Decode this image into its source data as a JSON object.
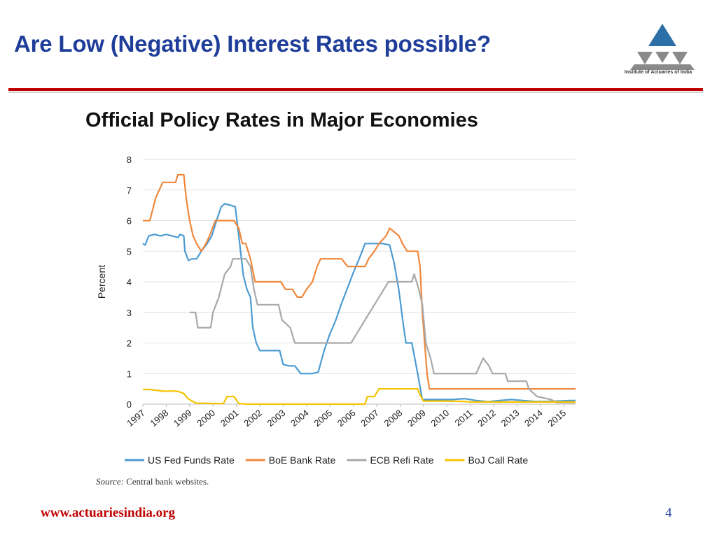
{
  "slide": {
    "title": "Are Low (Negative) Interest Rates possible?",
    "logo_text": "Institute of Actuaries of India",
    "subtitle": "Official Policy Rates in Major Economies",
    "source_label": "Source:",
    "source_text": "Central bank websites.",
    "footer_url": "www.actuariesindia.org",
    "page_number": "4"
  },
  "colors": {
    "title": "#1f3e9a",
    "accent_red": "#c00000",
    "logo_blue": "#2c6fa6",
    "logo_grey": "#8a8a8a"
  },
  "chart_data": {
    "type": "line",
    "title": "Official Policy Rates in Major Economies",
    "xlabel": "",
    "ylabel": "Percent",
    "xlim": [
      1997,
      2015.5
    ],
    "ylim": [
      0,
      8
    ],
    "yticks": [
      0,
      1,
      2,
      3,
      4,
      5,
      6,
      7,
      8
    ],
    "xticks": [
      "1997",
      "1998",
      "1999",
      "2000",
      "2001",
      "2002",
      "2003",
      "2004",
      "2005",
      "2006",
      "2007",
      "2008",
      "2009",
      "2010",
      "2011",
      "2012",
      "2013",
      "2014",
      "2015"
    ],
    "grid": "horizontal",
    "legend_position": "bottom",
    "series": [
      {
        "name": "US Fed Funds Rate",
        "color": "#4c9bd2",
        "points": [
          [
            1997.0,
            5.25
          ],
          [
            1997.1,
            5.2
          ],
          [
            1997.25,
            5.5
          ],
          [
            1997.5,
            5.55
          ],
          [
            1997.75,
            5.5
          ],
          [
            1998.0,
            5.55
          ],
          [
            1998.25,
            5.5
          ],
          [
            1998.5,
            5.45
          ],
          [
            1998.6,
            5.55
          ],
          [
            1998.75,
            5.5
          ],
          [
            1998.8,
            5.0
          ],
          [
            1998.95,
            4.7
          ],
          [
            1999.1,
            4.75
          ],
          [
            1999.3,
            4.75
          ],
          [
            1999.5,
            5.0
          ],
          [
            1999.75,
            5.25
          ],
          [
            1999.95,
            5.5
          ],
          [
            2000.15,
            6.0
          ],
          [
            2000.35,
            6.45
          ],
          [
            2000.5,
            6.55
          ],
          [
            2000.75,
            6.5
          ],
          [
            2000.95,
            6.45
          ],
          [
            2001.1,
            5.5
          ],
          [
            2001.3,
            4.2
          ],
          [
            2001.45,
            3.75
          ],
          [
            2001.6,
            3.5
          ],
          [
            2001.7,
            2.5
          ],
          [
            2001.85,
            2.0
          ],
          [
            2002.0,
            1.75
          ],
          [
            2002.25,
            1.75
          ],
          [
            2002.5,
            1.75
          ],
          [
            2002.85,
            1.75
          ],
          [
            2003.0,
            1.3
          ],
          [
            2003.25,
            1.25
          ],
          [
            2003.5,
            1.25
          ],
          [
            2003.75,
            1.0
          ],
          [
            2004.0,
            1.0
          ],
          [
            2004.25,
            1.0
          ],
          [
            2004.5,
            1.05
          ],
          [
            2004.75,
            1.75
          ],
          [
            2005.0,
            2.3
          ],
          [
            2005.25,
            2.75
          ],
          [
            2005.5,
            3.3
          ],
          [
            2005.75,
            3.8
          ],
          [
            2006.0,
            4.3
          ],
          [
            2006.25,
            4.75
          ],
          [
            2006.5,
            5.25
          ],
          [
            2006.75,
            5.25
          ],
          [
            2007.0,
            5.25
          ],
          [
            2007.25,
            5.25
          ],
          [
            2007.55,
            5.2
          ],
          [
            2007.75,
            4.6
          ],
          [
            2007.95,
            3.7
          ],
          [
            2008.1,
            2.8
          ],
          [
            2008.25,
            2.0
          ],
          [
            2008.5,
            2.0
          ],
          [
            2008.75,
            1.0
          ],
          [
            2008.95,
            0.15
          ],
          [
            2009.25,
            0.15
          ],
          [
            2009.75,
            0.15
          ],
          [
            2010.25,
            0.15
          ],
          [
            2010.75,
            0.18
          ],
          [
            2011.25,
            0.12
          ],
          [
            2011.75,
            0.08
          ],
          [
            2012.25,
            0.12
          ],
          [
            2012.75,
            0.15
          ],
          [
            2013.25,
            0.12
          ],
          [
            2013.75,
            0.09
          ],
          [
            2014.25,
            0.09
          ],
          [
            2014.75,
            0.1
          ],
          [
            2015.25,
            0.12
          ],
          [
            2015.5,
            0.12
          ]
        ]
      },
      {
        "name": "BoE Bank Rate",
        "color": "#f0883c",
        "points": [
          [
            1997.0,
            6.0
          ],
          [
            1997.3,
            6.0
          ],
          [
            1997.55,
            6.75
          ],
          [
            1997.7,
            7.0
          ],
          [
            1997.85,
            7.25
          ],
          [
            1998.4,
            7.25
          ],
          [
            1998.5,
            7.5
          ],
          [
            1998.75,
            7.5
          ],
          [
            1998.85,
            6.75
          ],
          [
            1999.0,
            6.0
          ],
          [
            1999.15,
            5.5
          ],
          [
            1999.3,
            5.25
          ],
          [
            1999.5,
            5.0
          ],
          [
            1999.7,
            5.25
          ],
          [
            1999.85,
            5.5
          ],
          [
            2000.1,
            6.0
          ],
          [
            2000.9,
            6.0
          ],
          [
            2001.1,
            5.75
          ],
          [
            2001.25,
            5.25
          ],
          [
            2001.4,
            5.25
          ],
          [
            2001.6,
            4.75
          ],
          [
            2001.8,
            4.0
          ],
          [
            2002.0,
            4.0
          ],
          [
            2002.9,
            4.0
          ],
          [
            2003.1,
            3.75
          ],
          [
            2003.4,
            3.75
          ],
          [
            2003.6,
            3.5
          ],
          [
            2003.8,
            3.5
          ],
          [
            2004.0,
            3.75
          ],
          [
            2004.25,
            4.0
          ],
          [
            2004.45,
            4.5
          ],
          [
            2004.6,
            4.75
          ],
          [
            2005.5,
            4.75
          ],
          [
            2005.75,
            4.5
          ],
          [
            2006.5,
            4.5
          ],
          [
            2006.65,
            4.75
          ],
          [
            2006.9,
            5.0
          ],
          [
            2007.1,
            5.25
          ],
          [
            2007.4,
            5.5
          ],
          [
            2007.55,
            5.75
          ],
          [
            2007.95,
            5.5
          ],
          [
            2008.1,
            5.25
          ],
          [
            2008.3,
            5.0
          ],
          [
            2008.75,
            5.0
          ],
          [
            2008.85,
            4.5
          ],
          [
            2008.95,
            3.0
          ],
          [
            2009.05,
            2.0
          ],
          [
            2009.15,
            1.0
          ],
          [
            2009.25,
            0.5
          ],
          [
            2015.5,
            0.5
          ]
        ]
      },
      {
        "name": "ECB Refi Rate",
        "color": "#a8a8a8",
        "points": [
          [
            1999.0,
            3.0
          ],
          [
            1999.25,
            3.0
          ],
          [
            1999.35,
            2.5
          ],
          [
            1999.9,
            2.5
          ],
          [
            2000.0,
            3.0
          ],
          [
            2000.25,
            3.5
          ],
          [
            2000.5,
            4.25
          ],
          [
            2000.75,
            4.5
          ],
          [
            2000.85,
            4.75
          ],
          [
            2001.4,
            4.75
          ],
          [
            2001.6,
            4.5
          ],
          [
            2001.75,
            3.75
          ],
          [
            2001.9,
            3.25
          ],
          [
            2002.8,
            3.25
          ],
          [
            2002.95,
            2.75
          ],
          [
            2003.3,
            2.5
          ],
          [
            2003.5,
            2.0
          ],
          [
            2005.9,
            2.0
          ],
          [
            2006.1,
            2.25
          ],
          [
            2006.3,
            2.5
          ],
          [
            2006.5,
            2.75
          ],
          [
            2006.7,
            3.0
          ],
          [
            2006.9,
            3.25
          ],
          [
            2007.1,
            3.5
          ],
          [
            2007.3,
            3.75
          ],
          [
            2007.5,
            4.0
          ],
          [
            2008.5,
            4.0
          ],
          [
            2008.6,
            4.25
          ],
          [
            2008.8,
            3.75
          ],
          [
            2008.95,
            3.25
          ],
          [
            2009.1,
            2.0
          ],
          [
            2009.3,
            1.5
          ],
          [
            2009.45,
            1.0
          ],
          [
            2011.25,
            1.0
          ],
          [
            2011.4,
            1.25
          ],
          [
            2011.55,
            1.5
          ],
          [
            2011.8,
            1.25
          ],
          [
            2011.95,
            1.0
          ],
          [
            2012.5,
            1.0
          ],
          [
            2012.6,
            0.75
          ],
          [
            2013.4,
            0.75
          ],
          [
            2013.5,
            0.5
          ],
          [
            2013.85,
            0.25
          ],
          [
            2014.45,
            0.15
          ],
          [
            2014.7,
            0.05
          ],
          [
            2015.5,
            0.05
          ]
        ]
      },
      {
        "name": "BoJ Call Rate",
        "color": "#f5c400",
        "points": [
          [
            1997.0,
            0.48
          ],
          [
            1997.3,
            0.48
          ],
          [
            1997.6,
            0.45
          ],
          [
            1997.9,
            0.42
          ],
          [
            1998.2,
            0.43
          ],
          [
            1998.5,
            0.42
          ],
          [
            1998.75,
            0.35
          ],
          [
            1998.9,
            0.2
          ],
          [
            1999.1,
            0.1
          ],
          [
            1999.3,
            0.03
          ],
          [
            1999.6,
            0.03
          ],
          [
            2000.0,
            0.02
          ],
          [
            2000.45,
            0.02
          ],
          [
            2000.6,
            0.25
          ],
          [
            2000.9,
            0.25
          ],
          [
            2001.1,
            0.02
          ],
          [
            2001.5,
            0.001
          ],
          [
            2006.0,
            0.001
          ],
          [
            2006.5,
            0.001
          ],
          [
            2006.6,
            0.25
          ],
          [
            2006.9,
            0.25
          ],
          [
            2007.1,
            0.5
          ],
          [
            2008.75,
            0.5
          ],
          [
            2008.85,
            0.3
          ],
          [
            2009.0,
            0.1
          ],
          [
            2010.0,
            0.1
          ],
          [
            2010.75,
            0.09
          ],
          [
            2011.0,
            0.07
          ],
          [
            2015.5,
            0.07
          ]
        ]
      }
    ]
  }
}
